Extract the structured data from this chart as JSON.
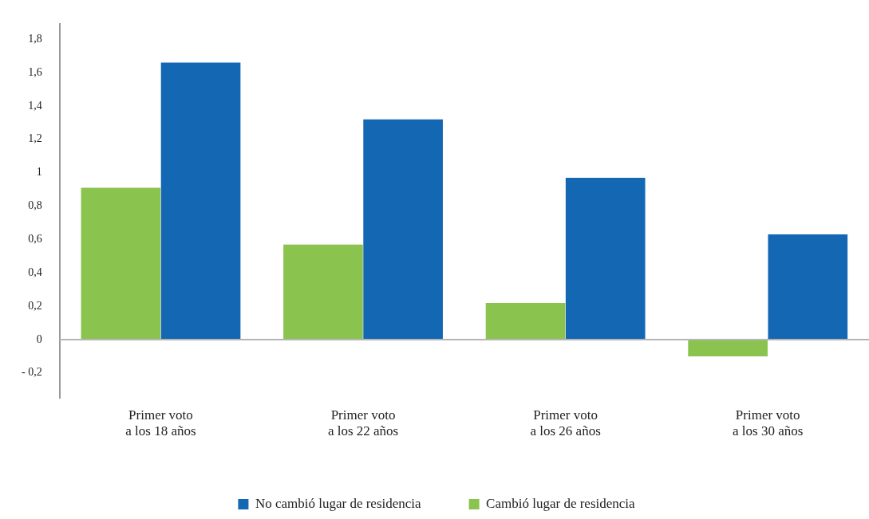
{
  "chart_data": {
    "type": "bar",
    "categories": [
      "Primer voto\na los 18 años",
      "Primer voto\na los 22 años",
      "Primer voto\na los 26 años",
      "Primer voto\na los 30 años"
    ],
    "series": [
      {
        "name": "Cambió lugar de residencia",
        "color": "#8bc34f",
        "values": [
          0.91,
          0.57,
          0.22,
          -0.1
        ]
      },
      {
        "name": "No cambió lugar de residencia",
        "color": "#1467b3",
        "values": [
          1.66,
          1.32,
          0.97,
          0.63
        ]
      }
    ],
    "ylim": [
      -0.35,
      1.89
    ],
    "yticks": [
      {
        "value": -0.2,
        "label": "- 0,2"
      },
      {
        "value": 0,
        "label": "0"
      },
      {
        "value": 0.2,
        "label": "0,2"
      },
      {
        "value": 0.4,
        "label": "0,4"
      },
      {
        "value": 0.6,
        "label": "0,6"
      },
      {
        "value": 0.8,
        "label": "0,8"
      },
      {
        "value": 1,
        "label": "1"
      },
      {
        "value": 1.2,
        "label": "1,2"
      },
      {
        "value": 1.4,
        "label": "1,4"
      },
      {
        "value": 1.6,
        "label": "1,6"
      },
      {
        "value": 1.8,
        "label": "1,8"
      }
    ],
    "ref_lines": [
      {
        "axis": "y",
        "value": 0,
        "color": "#b5b5b5"
      }
    ],
    "grid": false,
    "legend": "bottom"
  }
}
